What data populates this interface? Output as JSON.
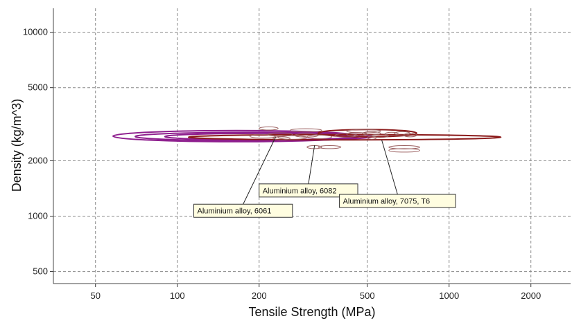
{
  "chart_data": {
    "type": "scatter",
    "xlabel": "Tensile Strength (MPa)",
    "ylabel": "Density (kg/m^3)",
    "x_scale": "log",
    "y_scale": "log",
    "xlim": [
      35,
      2800
    ],
    "ylim": [
      430,
      13500
    ],
    "x_ticks": [
      50,
      100,
      200,
      500,
      1000,
      2000
    ],
    "x_tick_labels": [
      "50",
      "100",
      "200",
      "500",
      "1000",
      "2000"
    ],
    "y_ticks": [
      500,
      1000,
      2000,
      5000,
      10000
    ],
    "y_tick_labels": [
      "500",
      "1000",
      "2000",
      "5000",
      "10000"
    ],
    "grid": true,
    "colors": {
      "purple": "#8e1f8e",
      "maroon": "#8b1a1a",
      "bubble": "#9b6060",
      "callout_fill": "#fffde0",
      "grid": "#888888"
    },
    "series": [
      {
        "color": "purple",
        "ranges": [
          {
            "x": [
              58,
              470
            ],
            "y": [
              2540,
              2920
            ]
          },
          {
            "x": [
              70,
              520
            ],
            "y": [
              2570,
              2860
            ]
          },
          {
            "x": [
              90,
              450
            ],
            "y": [
              2600,
              2820
            ]
          }
        ]
      },
      {
        "color": "maroon",
        "ranges": [
          {
            "x": [
              110,
              1550
            ],
            "y": [
              2600,
              2780
            ]
          },
          {
            "x": [
              330,
              760
            ],
            "y": [
              2700,
              2960
            ]
          }
        ]
      },
      {
        "color": "bubble",
        "ranges": [
          {
            "x": [
              185,
              230
            ],
            "y": [
              2660,
              2780
            ]
          },
          {
            "x": [
              215,
              265
            ],
            "y": [
              2720,
              2840
            ]
          },
          {
            "x": [
              235,
              300
            ],
            "y": [
              2620,
              2740
            ]
          },
          {
            "x": [
              270,
              330
            ],
            "y": [
              2690,
              2810
            ]
          },
          {
            "x": [
              300,
              370
            ],
            "y": [
              2640,
              2760
            ]
          },
          {
            "x": [
              260,
              340
            ],
            "y": [
              2870,
              2990
            ]
          },
          {
            "x": [
              380,
              460
            ],
            "y": [
              2690,
              2810
            ]
          },
          {
            "x": [
              420,
              500
            ],
            "y": [
              2730,
              2850
            ]
          },
          {
            "x": [
              480,
              560
            ],
            "y": [
              2760,
              2880
            ]
          },
          {
            "x": [
              520,
              600
            ],
            "y": [
              2680,
              2800
            ]
          },
          {
            "x": [
              580,
              650
            ],
            "y": [
              2740,
              2860
            ]
          },
          {
            "x": [
              630,
              720
            ],
            "y": [
              2760,
              2880
            ]
          },
          {
            "x": [
              680,
              760
            ],
            "y": [
              2700,
              2820
            ]
          },
          {
            "x": [
              300,
              340
            ],
            "y": [
              2330,
              2420
            ]
          },
          {
            "x": [
              330,
              400
            ],
            "y": [
              2330,
              2420
            ]
          },
          {
            "x": [
              600,
              780
            ],
            "y": [
              2230,
              2330
            ]
          },
          {
            "x": [
              600,
              780
            ],
            "y": [
              2320,
              2420
            ]
          },
          {
            "x": [
              225,
              260
            ],
            "y": [
              2600,
              2700
            ]
          },
          {
            "x": [
              200,
              235
            ],
            "y": [
              2940,
              3060
            ]
          },
          {
            "x": [
              500,
              540
            ],
            "y": [
              2620,
              2720
            ]
          },
          {
            "x": [
              420,
              560
            ],
            "y": [
              2840,
              2960
            ]
          }
        ]
      }
    ],
    "annotations": [
      {
        "text": "Aluminium alloy, 6061",
        "x": 230,
        "y": 2690,
        "label_x": 115,
        "label_y": 1070
      },
      {
        "text": "Aluminium alloy, 6082",
        "x": 320,
        "y": 2430,
        "label_x": 200,
        "label_y": 1380
      },
      {
        "text": "Aluminium alloy, 7075, T6",
        "x": 565,
        "y": 2600,
        "label_x": 395,
        "label_y": 1210
      }
    ]
  }
}
